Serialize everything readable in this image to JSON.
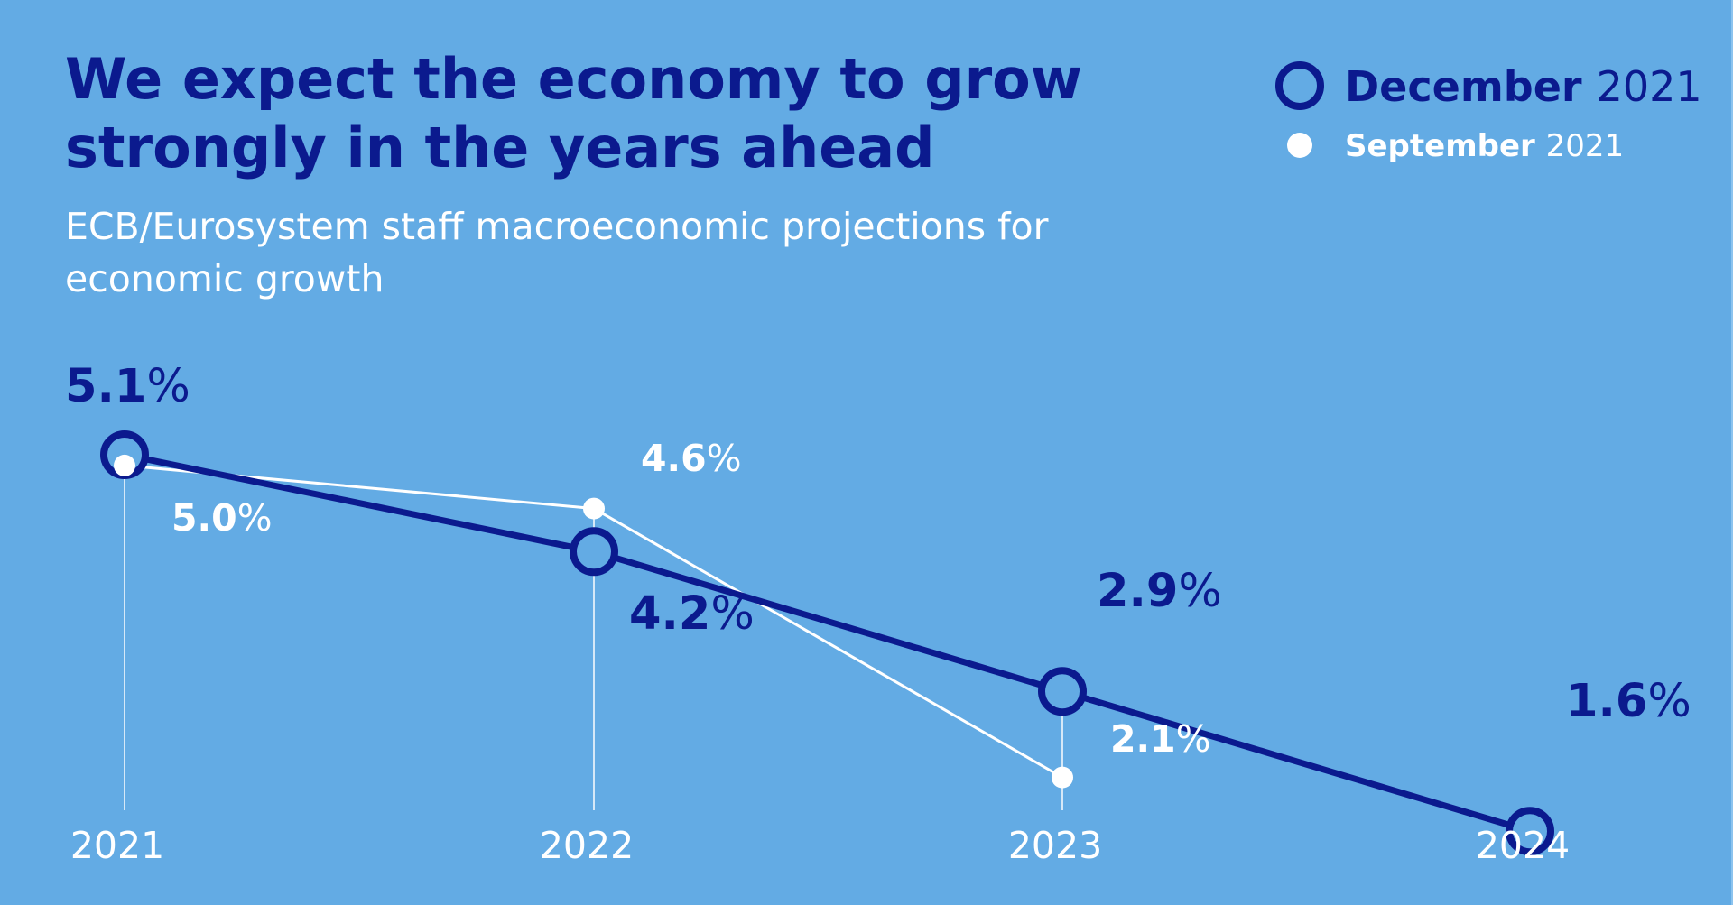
{
  "title": "We expect the economy to grow strongly in the years ahead",
  "subtitle": "ECB/Eurosystem staff macroeconomic projections for economic growth",
  "colors": {
    "background": "#63abe4",
    "december": "#0b1a8e",
    "september": "#ffffff",
    "axis_lines": "#d6e8f7"
  },
  "chart_data": {
    "type": "line",
    "title": "We expect the economy to grow strongly in the years ahead",
    "subtitle": "ECB/Eurosystem staff macroeconomic projections for economic growth",
    "x": [
      "2021",
      "2022",
      "2023",
      "2024"
    ],
    "unit": "%",
    "series": [
      {
        "name": "December 2021",
        "legend_bold": "December",
        "legend_rest": "2021",
        "values": [
          5.1,
          4.2,
          2.9,
          1.6
        ],
        "labels": [
          "5.1",
          "4.2",
          "2.9",
          "1.6"
        ],
        "color": "#0b1a8e",
        "marker": "hollow-circle"
      },
      {
        "name": "September 2021",
        "legend_bold": "September",
        "legend_rest": "2021",
        "values": [
          5.0,
          4.6,
          2.1,
          null
        ],
        "labels": [
          "5.0",
          "4.6",
          "2.1",
          null
        ],
        "color": "#ffffff",
        "marker": "filled-dot"
      }
    ],
    "legend_position": "top-right",
    "grid": false,
    "yaxis_visible": false
  }
}
